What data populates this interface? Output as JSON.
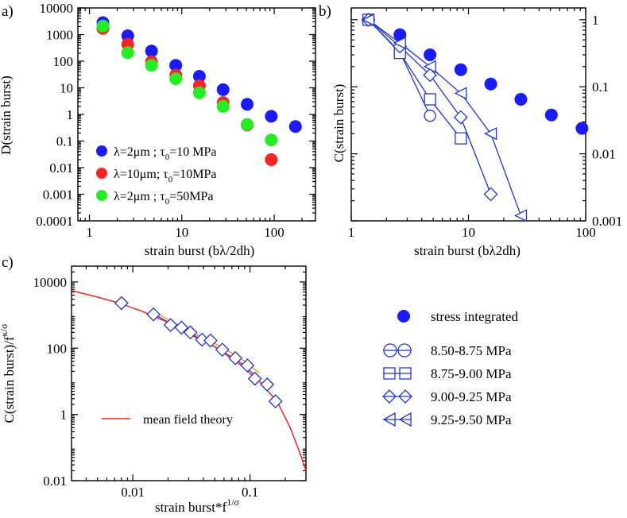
{
  "chart_data": [
    {
      "panel": "a)",
      "type": "scatter",
      "xlabel": "strain burst (bλ/2dh)",
      "ylabel": "D(strain burst)",
      "xscale": "log",
      "yscale": "log",
      "xlim": [
        0.75,
        280
      ],
      "ylim": [
        0.0001,
        10000
      ],
      "xticks": [
        1,
        10,
        100
      ],
      "xtick_labels": [
        "1",
        "10",
        "100"
      ],
      "yticks": [
        0.0001,
        0.001,
        0.01,
        0.1,
        1,
        10,
        100,
        1000,
        10000
      ],
      "ytick_labels": [
        "0.0001",
        "0.001",
        "0.01",
        "0.1",
        "1",
        "10",
        "100",
        "1000",
        "10000"
      ],
      "legend_position": "lower-left",
      "series": [
        {
          "name": "λ=2μm  ; τ0=10 MPa",
          "label_main": "λ=2μm  ; τ",
          "label_sub": "0",
          "label_tail": "=10 MPa",
          "color": "#1a1aff",
          "x": [
            1.4,
            2.6,
            4.7,
            8.6,
            15.5,
            28,
            51,
            93,
            170
          ],
          "y": [
            2800,
            900,
            240,
            70,
            27,
            8.5,
            2.4,
            0.85,
            0.35
          ]
        },
        {
          "name": "λ=10μm; τ0=10MPa",
          "label_main": "λ=10μm; τ",
          "label_sub": "0",
          "label_tail": "=10MPa",
          "color": "#ff2222",
          "x": [
            1.4,
            2.6,
            4.7,
            8.6,
            15.5,
            28,
            51,
            93
          ],
          "y": [
            1700,
            430,
            95,
            30,
            12,
            2.8,
            0.4,
            0.02
          ]
        },
        {
          "name": "λ=2μm  ; τ0=50MPa",
          "label_main": "λ=2μm  ; τ",
          "label_sub": "0",
          "label_tail": "=50MPa",
          "color": "#22ee22",
          "x": [
            1.4,
            2.6,
            4.7,
            8.6,
            15.5,
            28,
            51,
            93
          ],
          "y": [
            2100,
            210,
            70,
            22,
            6.5,
            2.0,
            0.42,
            0.11
          ]
        }
      ]
    },
    {
      "panel": "b)",
      "type": "line",
      "xlabel": "strain burst (bλ2dh)",
      "ylabel": "C(strain burst)",
      "xscale": "log",
      "yscale": "log",
      "xlim": [
        1,
        100
      ],
      "ylim": [
        0.001,
        1.5
      ],
      "xticks": [
        1,
        10,
        100
      ],
      "xtick_labels": [
        "1",
        "10",
        "100"
      ],
      "yticks": [
        0.001,
        0.01,
        0.1,
        1
      ],
      "ytick_labels": [
        "0.001",
        "0.01",
        "0.1",
        "1"
      ],
      "y_axis_side": "right",
      "series": [
        {
          "name": "stress integrated",
          "marker": "filled-circle",
          "line": false,
          "x": [
            1.4,
            2.6,
            4.7,
            8.6,
            15.5,
            28,
            51,
            93
          ],
          "y": [
            1,
            0.6,
            0.3,
            0.18,
            0.11,
            0.065,
            0.038,
            0.024
          ]
        },
        {
          "name": "8.50-8.75 MPa",
          "marker": "open-circle",
          "line": true,
          "x": [
            1.4,
            2.6,
            4.7
          ],
          "y": [
            1,
            0.33,
            0.037
          ]
        },
        {
          "name": "8.75-9.00 MPa",
          "marker": "open-square",
          "line": true,
          "x": [
            1.4,
            2.6,
            4.7,
            8.6
          ],
          "y": [
            1,
            0.32,
            0.065,
            0.017
          ]
        },
        {
          "name": "9.00-9.25 MPa",
          "marker": "open-diamond",
          "line": true,
          "x": [
            1.4,
            2.6,
            4.7,
            8.6,
            15.5
          ],
          "y": [
            1,
            0.4,
            0.15,
            0.035,
            0.0025
          ]
        },
        {
          "name": "9.25-9.50 MPa",
          "marker": "open-left-triangle",
          "line": true,
          "x": [
            1.4,
            2.6,
            4.7,
            8.6,
            15.5,
            28
          ],
          "y": [
            1,
            0.45,
            0.2,
            0.08,
            0.02,
            0.0012
          ]
        }
      ]
    },
    {
      "panel": "c)",
      "type": "scatter",
      "xlabel_main": "strain burst*f",
      "xlabel_sup": "1/σ",
      "ylabel_main": "C(strain burst)/f",
      "ylabel_sup": "κ/σ",
      "xscale": "log",
      "yscale": "log",
      "xlim": [
        0.003,
        0.3
      ],
      "ylim": [
        0.01,
        30000
      ],
      "xticks": [
        0.01,
        0.1
      ],
      "xtick_labels": [
        "0.01",
        "0.1"
      ],
      "yticks": [
        0.01,
        1,
        100,
        10000
      ],
      "ytick_labels": [
        "0.01",
        "1",
        "100",
        "10000"
      ],
      "theory_curve": {
        "name": "mean field theory",
        "color": "#ff2222",
        "x": [
          0.003,
          0.005,
          0.008,
          0.012,
          0.02,
          0.03,
          0.05,
          0.08,
          0.12,
          0.17,
          0.22,
          0.27,
          0.3
        ],
        "y": [
          5500,
          3500,
          2200,
          1300,
          600,
          300,
          110,
          35,
          10,
          2.5,
          0.4,
          0.06,
          0.02
        ]
      },
      "extra_curves": [
        {
          "color": "#ff9900",
          "x": [
            0.015,
            0.03,
            0.05,
            0.08,
            0.12
          ],
          "y": [
            1300,
            330,
            140,
            55,
            18
          ]
        },
        {
          "color": "#2255dd",
          "x": [
            0.015,
            0.03,
            0.05,
            0.08,
            0.12
          ],
          "y": [
            1100,
            270,
            110,
            40,
            12
          ]
        }
      ],
      "markers": {
        "marker": "open-diamond",
        "x": [
          0.008,
          0.015,
          0.021,
          0.026,
          0.031,
          0.039,
          0.046,
          0.058,
          0.075,
          0.095,
          0.11,
          0.14,
          0.165
        ],
        "y": [
          2300,
          1050,
          500,
          420,
          300,
          180,
          170,
          90,
          50,
          30,
          12,
          8,
          2.5
        ]
      }
    }
  ],
  "legend_b": {
    "stress_integrated": "stress integrated",
    "range1": "8.50-8.75 MPa",
    "range2": "8.75-9.00 MPa",
    "range3": "9.00-9.25 MPa",
    "range4": "9.25-9.50 MPa"
  },
  "mean_field_label": "mean field theory",
  "colors": {
    "blue": "#1a1aff",
    "red": "#ff2222",
    "green": "#22ee22",
    "orange": "#ff9900",
    "line_blue": "#2233dd"
  }
}
